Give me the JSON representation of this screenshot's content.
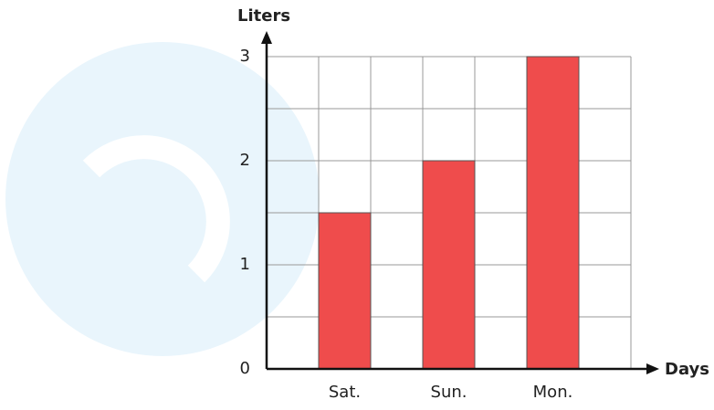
{
  "chart_data": {
    "type": "bar",
    "x_label": "Days",
    "y_label": "Liters",
    "categories": [
      "Sat.",
      "Sun.",
      "Mon."
    ],
    "values": [
      1.5,
      2,
      3
    ],
    "color": "#ef4c4c",
    "ylim": [
      0,
      3
    ],
    "yticks": [
      0,
      1,
      2,
      3
    ],
    "grid": true
  }
}
